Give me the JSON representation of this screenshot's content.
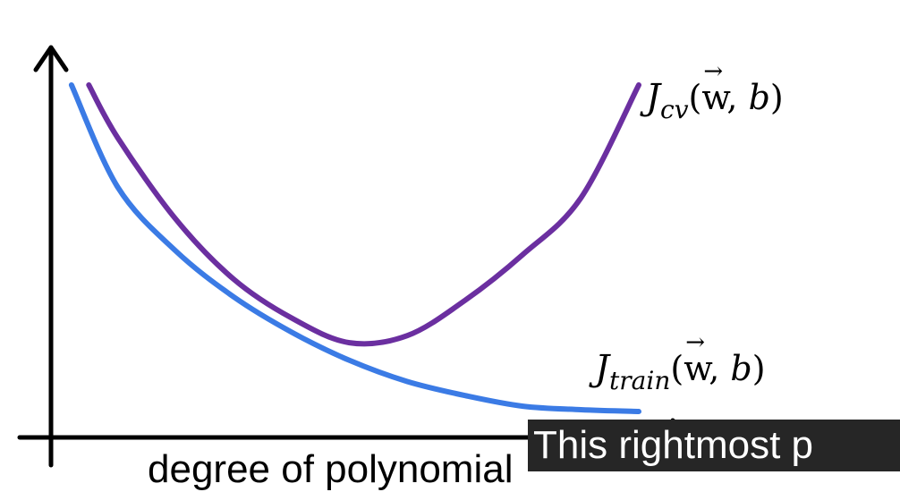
{
  "chart_data": {
    "type": "line",
    "xlabel": "degree of polynomial",
    "ylabel": "",
    "axes": {
      "show_ticks": false,
      "grid": false
    },
    "series": [
      {
        "name": "J_cv(w, b)",
        "color": "#6b2fa0",
        "x": [
          0.5,
          1,
          2,
          3,
          4,
          5,
          6,
          7,
          8,
          9,
          10
        ],
        "y": [
          0.95,
          0.8,
          0.57,
          0.4,
          0.29,
          0.22,
          0.24,
          0.34,
          0.47,
          0.63,
          0.95
        ]
      },
      {
        "name": "J_train(w, b)",
        "color": "#3b7be5",
        "x": [
          0.2,
          1,
          2,
          3,
          4,
          5,
          6,
          7,
          8,
          9,
          10
        ],
        "y": [
          0.95,
          0.66,
          0.48,
          0.35,
          0.25,
          0.17,
          0.11,
          0.07,
          0.04,
          0.03,
          0.025
        ]
      }
    ]
  },
  "labels": {
    "cv": {
      "J": "J",
      "sub": "cv",
      "open": "(",
      "w": "w",
      "comma": ", ",
      "b": "b",
      "close": ")"
    },
    "train": {
      "J": "J",
      "sub": "train",
      "open": "(",
      "w": "w",
      "comma": ", ",
      "b": "b",
      "close": ")"
    }
  },
  "caption": {
    "text": "This rightmost p"
  }
}
